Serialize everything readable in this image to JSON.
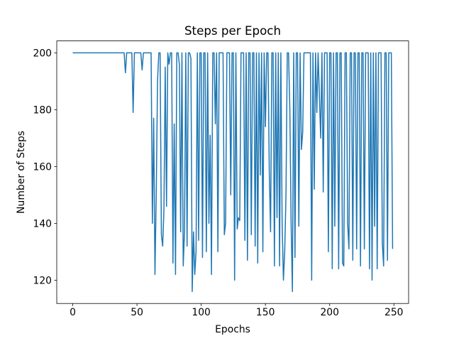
{
  "chart_data": {
    "type": "line",
    "title": "Steps per Epoch",
    "x_label": "Epochs",
    "y_label": "Number of Steps",
    "color": "#1f77b4",
    "xlim": [
      -12.45,
      261.45
    ],
    "xticks": [
      0,
      50,
      100,
      150,
      200,
      250
    ],
    "ylim": [
      111.8,
      204.2
    ],
    "yticks": [
      120,
      140,
      160,
      180,
      200
    ],
    "x": [
      0,
      1,
      2,
      3,
      4,
      5,
      6,
      7,
      8,
      9,
      10,
      11,
      12,
      13,
      14,
      15,
      16,
      17,
      18,
      19,
      20,
      21,
      22,
      23,
      24,
      25,
      26,
      27,
      28,
      29,
      30,
      31,
      32,
      33,
      34,
      35,
      36,
      37,
      38,
      39,
      40,
      41,
      42,
      43,
      44,
      45,
      46,
      47,
      48,
      49,
      50,
      51,
      52,
      53,
      54,
      55,
      56,
      57,
      58,
      59,
      60,
      61,
      62,
      63,
      64,
      65,
      66,
      67,
      68,
      69,
      70,
      71,
      72,
      73,
      74,
      75,
      76,
      77,
      78,
      79,
      80,
      81,
      82,
      83,
      84,
      85,
      86,
      87,
      88,
      89,
      90,
      91,
      92,
      93,
      94,
      95,
      96,
      97,
      98,
      99,
      100,
      101,
      102,
      103,
      104,
      105,
      106,
      107,
      108,
      109,
      110,
      111,
      112,
      113,
      114,
      115,
      116,
      117,
      118,
      119,
      120,
      121,
      122,
      123,
      124,
      125,
      126,
      127,
      128,
      129,
      130,
      131,
      132,
      133,
      134,
      135,
      136,
      137,
      138,
      139,
      140,
      141,
      142,
      143,
      144,
      145,
      146,
      147,
      148,
      149,
      150,
      151,
      152,
      153,
      154,
      155,
      156,
      157,
      158,
      159,
      160,
      161,
      162,
      163,
      164,
      165,
      166,
      167,
      168,
      169,
      170,
      171,
      172,
      173,
      174,
      175,
      176,
      177,
      178,
      179,
      180,
      181,
      182,
      183,
      184,
      185,
      186,
      187,
      188,
      189,
      190,
      191,
      192,
      193,
      194,
      195,
      196,
      197,
      198,
      199,
      200,
      201,
      202,
      203,
      204,
      205,
      206,
      207,
      208,
      209,
      210,
      211,
      212,
      213,
      214,
      215,
      216,
      217,
      218,
      219,
      220,
      221,
      222,
      223,
      224,
      225,
      226,
      227,
      228,
      229,
      230,
      231,
      232,
      233,
      234,
      235,
      236,
      237,
      238,
      239,
      240,
      241,
      242,
      243,
      244,
      245,
      246,
      247,
      248,
      249
    ],
    "values": [
      200,
      200,
      200,
      200,
      200,
      200,
      200,
      200,
      200,
      200,
      200,
      200,
      200,
      200,
      200,
      200,
      200,
      200,
      200,
      200,
      200,
      200,
      200,
      200,
      200,
      200,
      200,
      200,
      200,
      200,
      200,
      200,
      200,
      200,
      200,
      200,
      200,
      200,
      200,
      200,
      200,
      193,
      200,
      200,
      200,
      200,
      200,
      179,
      200,
      200,
      200,
      200,
      200,
      200,
      194,
      200,
      200,
      200,
      200,
      200,
      200,
      200,
      140,
      177,
      122,
      150,
      190,
      200,
      200,
      136,
      132,
      145,
      195,
      146,
      200,
      196,
      200,
      200,
      126,
      175,
      122,
      200,
      200,
      196,
      137,
      200,
      125,
      137,
      200,
      132,
      200,
      200,
      198,
      116,
      137,
      122,
      130,
      200,
      134,
      200,
      200,
      128,
      200,
      200,
      130,
      200,
      140,
      171,
      122,
      200,
      200,
      175,
      200,
      130,
      200,
      200,
      200,
      200,
      136,
      140,
      200,
      200,
      200,
      150,
      200,
      200,
      120,
      200,
      138,
      142,
      141,
      200,
      200,
      200,
      134,
      200,
      127,
      200,
      200,
      136,
      200,
      200,
      132,
      200,
      126,
      200,
      157,
      200,
      130,
      200,
      174,
      200,
      200,
      158,
      137,
      200,
      200,
      125,
      200,
      142,
      200,
      125,
      200,
      140,
      120,
      130,
      150,
      200,
      200,
      180,
      140,
      116,
      200,
      128,
      200,
      200,
      139,
      200,
      166,
      172,
      200,
      200,
      200,
      200,
      200,
      200,
      120,
      200,
      152,
      200,
      179,
      200,
      185,
      170,
      200,
      151,
      200,
      200,
      200,
      130,
      200,
      200,
      124,
      200,
      139,
      200,
      200,
      124,
      200,
      200,
      126,
      125,
      200,
      200,
      140,
      131,
      200,
      200,
      127,
      200,
      200,
      131,
      200,
      200,
      125,
      200,
      200,
      131,
      200,
      200,
      200,
      124,
      200,
      120,
      200,
      139,
      200,
      124,
      200,
      200,
      200,
      133,
      125,
      200,
      200,
      127,
      200,
      200,
      200,
      131
    ]
  }
}
